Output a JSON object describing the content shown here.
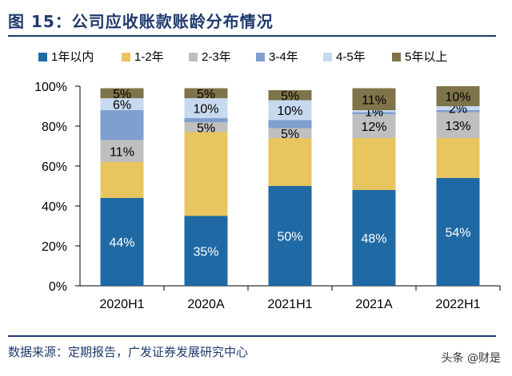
{
  "header": {
    "title": "图 15：公司应收账款账龄分布情况"
  },
  "footer": {
    "source": "数据来源：定期报告，广发证券发展研究中心",
    "watermark": "头条 @财是"
  },
  "colors": {
    "y1": "#1f6aa5",
    "y1_2": "#e8c55f",
    "y2_3": "#bfbfbf",
    "y3_4": "#7f9fce",
    "y4_5": "#c6d9ef",
    "y5p": "#7f7449",
    "frame": "#1f3b6e"
  },
  "chart_data": {
    "type": "bar",
    "stacked": true,
    "title": "图 15：公司应收账款账龄分布情况",
    "xlabel": "",
    "ylabel": "",
    "ylim": [
      0,
      100
    ],
    "yticks": [
      "0%",
      "20%",
      "40%",
      "60%",
      "80%",
      "100%"
    ],
    "categories": [
      "2020H1",
      "2020A",
      "2021H1",
      "2021A",
      "2022H1"
    ],
    "legend_position": "top",
    "series": [
      {
        "name": "1年以内",
        "color_key": "y1",
        "values": [
          44,
          35,
          50,
          48,
          54
        ],
        "labels": [
          "44%",
          "35%",
          "50%",
          "48%",
          "54%"
        ]
      },
      {
        "name": "1-2年",
        "color_key": "y1_2",
        "values": [
          18,
          42,
          24,
          26,
          20
        ],
        "labels": [
          "",
          "",
          "",
          "",
          ""
        ]
      },
      {
        "name": "2-3年",
        "color_key": "y2_3",
        "values": [
          11,
          5,
          5,
          12,
          13
        ],
        "labels": [
          "11%",
          "5%",
          "5%",
          "12%",
          "13%"
        ]
      },
      {
        "name": "3-4年",
        "color_key": "y3_4",
        "values": [
          15,
          2,
          4,
          1,
          1
        ],
        "labels": [
          "",
          "",
          "",
          "",
          ""
        ]
      },
      {
        "name": "4-5年",
        "color_key": "y4_5",
        "values": [
          6,
          10,
          10,
          1,
          2
        ],
        "labels": [
          "6%",
          "10%",
          "10%",
          "1%",
          "2%"
        ]
      },
      {
        "name": "5年以上",
        "color_key": "y5p",
        "values": [
          5,
          5,
          5,
          11,
          10
        ],
        "labels": [
          "5%",
          "5%",
          "5%",
          "11%",
          "10%"
        ]
      }
    ]
  }
}
